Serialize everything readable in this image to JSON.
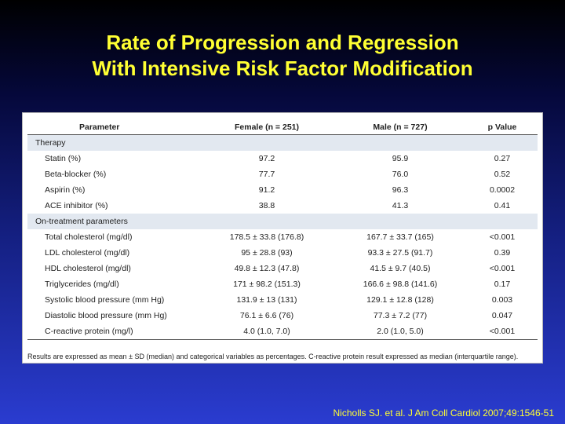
{
  "title": {
    "line1": "Rate of Progression and Regression",
    "line2": "With Intensive Risk Factor Modification"
  },
  "table": {
    "headers": [
      "Parameter",
      "Female (n = 251)",
      "Male (n = 727)",
      "p Value"
    ],
    "sections": [
      {
        "label": "Therapy",
        "rows": [
          [
            "Statin (%)",
            "97.2",
            "95.9",
            "0.27"
          ],
          [
            "Beta-blocker (%)",
            "77.7",
            "76.0",
            "0.52"
          ],
          [
            "Aspirin (%)",
            "91.2",
            "96.3",
            "0.0002"
          ],
          [
            "ACE inhibitor (%)",
            "38.8",
            "41.3",
            "0.41"
          ]
        ]
      },
      {
        "label": "On-treatment parameters",
        "rows": [
          [
            "Total cholesterol (mg/dl)",
            "178.5 ± 33.8 (176.8)",
            "167.7 ± 33.7 (165)",
            "<0.001"
          ],
          [
            "LDL cholesterol (mg/dl)",
            "95 ± 28.8 (93)",
            "93.3 ± 27.5 (91.7)",
            "0.39"
          ],
          [
            "HDL cholesterol (mg/dl)",
            "49.8 ± 12.3 (47.8)",
            "41.5 ± 9.7 (40.5)",
            "<0.001"
          ],
          [
            "Triglycerides (mg/dl)",
            "171 ± 98.2 (151.3)",
            "166.6 ± 98.8 (141.6)",
            "0.17"
          ],
          [
            "Systolic blood pressure (mm Hg)",
            "131.9 ± 13 (131)",
            "129.1 ± 12.8 (128)",
            "0.003"
          ],
          [
            "Diastolic blood pressure (mm Hg)",
            "76.1 ± 6.6 (76)",
            "77.3 ± 7.2 (77)",
            "0.047"
          ],
          [
            "C-reactive protein (mg/l)",
            "4.0 (1.0, 7.0)",
            "2.0 (1.0, 5.0)",
            "<0.001"
          ]
        ]
      }
    ],
    "footnote": "Results are expressed as mean ± SD (median) and categorical variables as percentages. C-reactive protein result expressed as median (interquartile range)."
  },
  "citation": "Nicholls SJ. et al. J Am Coll Cardiol 2007;49:1546-51",
  "colors": {
    "title": "#ffff33",
    "background_top": "#000000",
    "background_bottom": "#2a3cd0",
    "section_band": "#e2e8f0"
  }
}
